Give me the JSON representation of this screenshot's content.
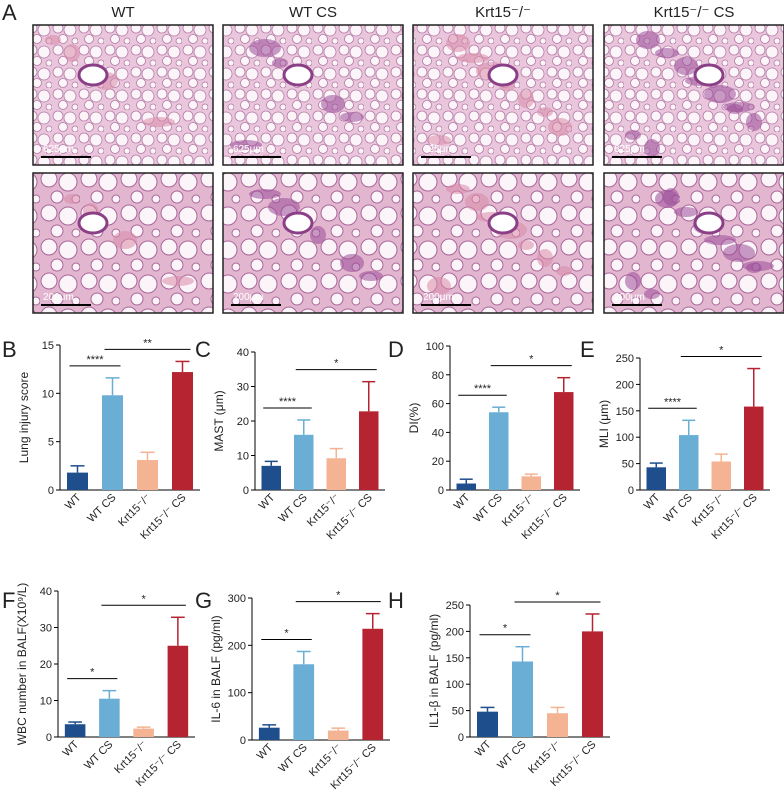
{
  "panel_labels": [
    "A",
    "B",
    "C",
    "D",
    "E",
    "F",
    "G",
    "H"
  ],
  "histology": {
    "columns": [
      "WT",
      "WT CS",
      "Krt15⁻/⁻",
      "Krt15⁻/⁻ CS"
    ],
    "scale_bars": [
      "625μm",
      "200μm"
    ]
  },
  "chart_data": [
    {
      "type": "bar",
      "y_label": "Lung injury score",
      "categories": [
        "WT",
        "WT CS",
        "Krt15⁻/⁻",
        "Krt15⁻/⁻ CS"
      ],
      "colors": [
        "#1f4e8c",
        "#6aaed6",
        "#f4b393",
        "#b52430"
      ],
      "values": [
        1.8,
        9.8,
        3.1,
        12.2
      ],
      "errors": [
        0.7,
        1.8,
        0.8,
        1.1
      ],
      "ylim": [
        0,
        15
      ],
      "yticks": [
        0,
        5,
        10,
        15
      ],
      "annotations": [
        {
          "text": "****",
          "between": [
            "WT",
            "WT CS"
          ]
        },
        {
          "text": "**",
          "between": [
            "WT CS",
            "Krt15⁻/⁻ CS"
          ]
        }
      ]
    },
    {
      "type": "bar",
      "y_label": "MAST (μm)",
      "categories": [
        "WT",
        "WT CS",
        "Krt15⁻/⁻",
        "Krt15⁻/⁻ CS"
      ],
      "colors": [
        "#1f4e8c",
        "#6aaed6",
        "#f4b393",
        "#b52430"
      ],
      "values": [
        7,
        16,
        9.2,
        22.8
      ],
      "errors": [
        1.3,
        4.3,
        2.8,
        8.6
      ],
      "ylim": [
        0,
        40
      ],
      "yticks": [
        0,
        10,
        20,
        30,
        40
      ],
      "annotations": [
        {
          "text": "****",
          "between": [
            "WT",
            "WT CS"
          ]
        },
        {
          "text": "*",
          "between": [
            "WT CS",
            "Krt15⁻/⁻ CS"
          ]
        }
      ]
    },
    {
      "type": "bar",
      "y_label": "DI(%)",
      "categories": [
        "WT",
        "WT CS",
        "Krt15⁻/⁻",
        "Krt15⁻/⁻ CS"
      ],
      "colors": [
        "#1f4e8c",
        "#6aaed6",
        "#f4b393",
        "#b52430"
      ],
      "values": [
        4.5,
        54,
        9.5,
        68
      ],
      "errors": [
        3,
        3.5,
        1.5,
        10
      ],
      "ylim": [
        0,
        100
      ],
      "yticks": [
        0,
        20,
        40,
        60,
        80,
        100
      ],
      "annotations": [
        {
          "text": "****",
          "between": [
            "WT",
            "WT CS"
          ]
        },
        {
          "text": "*",
          "between": [
            "WT CS",
            "Krt15⁻/⁻ CS"
          ]
        }
      ]
    },
    {
      "type": "bar",
      "y_label": "MLI (μm)",
      "categories": [
        "WT",
        "WT CS",
        "Krt15⁻/⁻",
        "Krt15⁻/⁻ CS"
      ],
      "colors": [
        "#1f4e8c",
        "#6aaed6",
        "#f4b393",
        "#b52430"
      ],
      "values": [
        43,
        104,
        54,
        158
      ],
      "errors": [
        8,
        28,
        14,
        72
      ],
      "ylim": [
        0,
        250
      ],
      "yticks": [
        0,
        50,
        100,
        150,
        200,
        250
      ],
      "annotations": [
        {
          "text": "****",
          "between": [
            "WT",
            "WT CS"
          ]
        },
        {
          "text": "*",
          "between": [
            "WT CS",
            "Krt15⁻/⁻ CS"
          ]
        }
      ]
    },
    {
      "type": "bar",
      "y_label": "WBC number in BALF(X10⁹/L)",
      "categories": [
        "WT",
        "WT CS",
        "Krt15⁻/⁻",
        "Krt15⁻/⁻ CS"
      ],
      "colors": [
        "#1f4e8c",
        "#6aaed6",
        "#f4b393",
        "#b52430"
      ],
      "values": [
        3.5,
        10.5,
        2.3,
        25
      ],
      "errors": [
        0.6,
        2.2,
        0.4,
        7.8
      ],
      "ylim": [
        0,
        40
      ],
      "yticks": [
        0,
        10,
        20,
        30,
        40
      ],
      "annotations": [
        {
          "text": "*",
          "between": [
            "WT",
            "WT CS"
          ]
        },
        {
          "text": "*",
          "between": [
            "WT CS",
            "Krt15⁻/⁻ CS"
          ]
        }
      ]
    },
    {
      "type": "bar",
      "y_label": "IL-6 in BALF (pg/ml)",
      "categories": [
        "WT",
        "WT CS",
        "Krt15⁻/⁻",
        "Krt15⁻/⁻ CS"
      ],
      "colors": [
        "#1f4e8c",
        "#6aaed6",
        "#f4b393",
        "#b52430"
      ],
      "values": [
        26,
        160,
        20,
        235
      ],
      "errors": [
        6,
        27,
        5,
        32
      ],
      "ylim": [
        0,
        300
      ],
      "yticks": [
        0,
        100,
        200,
        300
      ],
      "annotations": [
        {
          "text": "*",
          "between": [
            "WT",
            "WT CS"
          ]
        },
        {
          "text": "*",
          "between": [
            "WT CS",
            "Krt15⁻/⁻ CS"
          ]
        }
      ]
    },
    {
      "type": "bar",
      "y_label": "IL1-β in BALF (pg/ml)",
      "categories": [
        "WT",
        "WT CS",
        "Krt15⁻/⁻",
        "Krt15⁻/⁻ CS"
      ],
      "colors": [
        "#1f4e8c",
        "#6aaed6",
        "#f4b393",
        "#b52430"
      ],
      "values": [
        48,
        143,
        45,
        200
      ],
      "errors": [
        8,
        28,
        11,
        33
      ],
      "ylim": [
        0,
        250
      ],
      "yticks": [
        0,
        50,
        100,
        150,
        200,
        250
      ],
      "annotations": [
        {
          "text": "*",
          "between": [
            "WT",
            "WT CS"
          ]
        },
        {
          "text": "*",
          "between": [
            "WT CS",
            "Krt15⁻/⁻ CS"
          ]
        }
      ]
    }
  ]
}
